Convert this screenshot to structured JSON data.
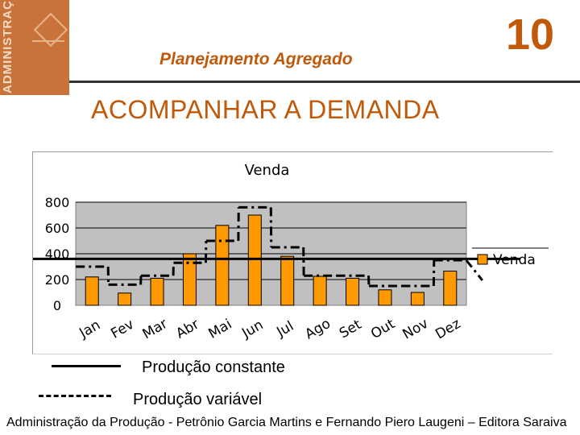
{
  "book_cover": {
    "vertical_text": "ADMINISTRAÇÃO DA PRODUÇÃO"
  },
  "header": {
    "title": "Planejamento Agregado",
    "slide_number": "10"
  },
  "heading": "ACOMPANHAR A DEMANDA",
  "chart_data": {
    "type": "bar",
    "title": "Venda",
    "categories": [
      "Jan",
      "Fev",
      "Mar",
      "Abr",
      "Mai",
      "Jun",
      "Jul",
      "Ago",
      "Set",
      "Out",
      "Nov",
      "Dez"
    ],
    "series": [
      {
        "name": "Venda",
        "values": [
          220,
          95,
          210,
          400,
          620,
          700,
          380,
          225,
          210,
          120,
          100,
          265
        ],
        "color": "#ff9900"
      }
    ],
    "ylim": [
      0,
      800
    ],
    "yticks": [
      "0",
      "200",
      "400",
      "600",
      "800"
    ],
    "grid": true,
    "legend": "right",
    "plot_background": "#c0c0c0",
    "constant_production": 360,
    "variable_production": [
      300,
      160,
      230,
      330,
      500,
      760,
      450,
      230,
      230,
      150,
      150,
      350
    ]
  },
  "legend": {
    "constant_label": "Produção constante",
    "variable_label": "Produção variável"
  },
  "footer": "Administração da Produção - Petrônio Garcia Martins e Fernando Piero Laugeni – Editora Saraiva"
}
